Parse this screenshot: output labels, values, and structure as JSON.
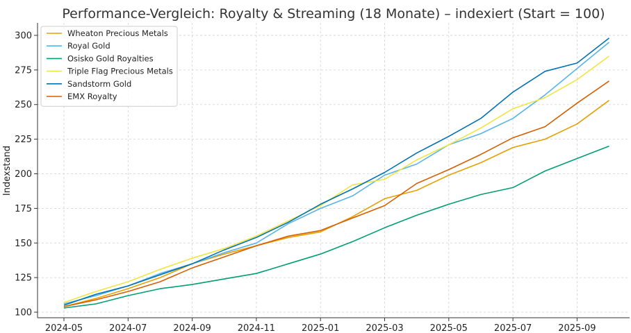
{
  "chart_data": {
    "type": "line",
    "title": "Performance-Vergleich: Royalty & Streaming (18 Monate) – indexiert (Start = 100)",
    "xlabel": "",
    "ylabel": "Indexstand",
    "ylim": [
      96,
      309
    ],
    "yticks": [
      100,
      125,
      150,
      175,
      200,
      225,
      250,
      275,
      300
    ],
    "xticks": [
      "2024-05",
      "2024-07",
      "2024-09",
      "2024-11",
      "2025-01",
      "2025-03",
      "2025-05",
      "2025-07",
      "2025-09"
    ],
    "x": [
      "2024-05",
      "2024-06",
      "2024-07",
      "2024-08",
      "2024-09",
      "2024-10",
      "2024-11",
      "2024-12",
      "2025-01",
      "2025-02",
      "2025-03",
      "2025-04",
      "2025-05",
      "2025-06",
      "2025-07",
      "2025-08",
      "2025-09",
      "2025-10"
    ],
    "grid": true,
    "legend_position": "top-left",
    "series": [
      {
        "name": "Wheaton Precious Metals",
        "color": "#E69F00",
        "values": [
          104,
          110,
          117,
          125,
          135,
          142,
          148,
          154,
          158,
          169,
          182,
          188,
          199,
          208,
          219,
          225,
          236,
          253
        ]
      },
      {
        "name": "Royal Gold",
        "color": "#56B4E9",
        "values": [
          106,
          112,
          119,
          128,
          135,
          143,
          150,
          164,
          175,
          184,
          199,
          207,
          221,
          229,
          240,
          257,
          276,
          295
        ]
      },
      {
        "name": "Osisko Gold Royalties",
        "color": "#009E73",
        "values": [
          103,
          106,
          112,
          117,
          120,
          124,
          128,
          135,
          142,
          151,
          161,
          170,
          178,
          185,
          190,
          202,
          211,
          220
        ]
      },
      {
        "name": "Triple Flag Precious Metals",
        "color": "#F0E442",
        "values": [
          107,
          115,
          122,
          131,
          139,
          146,
          155,
          166,
          177,
          192,
          196,
          210,
          221,
          233,
          247,
          255,
          268,
          285
        ]
      },
      {
        "name": "Sandstorm Gold",
        "color": "#0072B2",
        "values": [
          105,
          113,
          119,
          127,
          135,
          145,
          154,
          165,
          178,
          189,
          201,
          215,
          227,
          240,
          259,
          274,
          280,
          298
        ]
      },
      {
        "name": "EMX Royalty",
        "color": "#D55E00",
        "values": [
          104,
          109,
          115,
          122,
          132,
          140,
          148,
          155,
          159,
          168,
          177,
          193,
          203,
          214,
          226,
          234,
          251,
          267
        ]
      }
    ]
  }
}
